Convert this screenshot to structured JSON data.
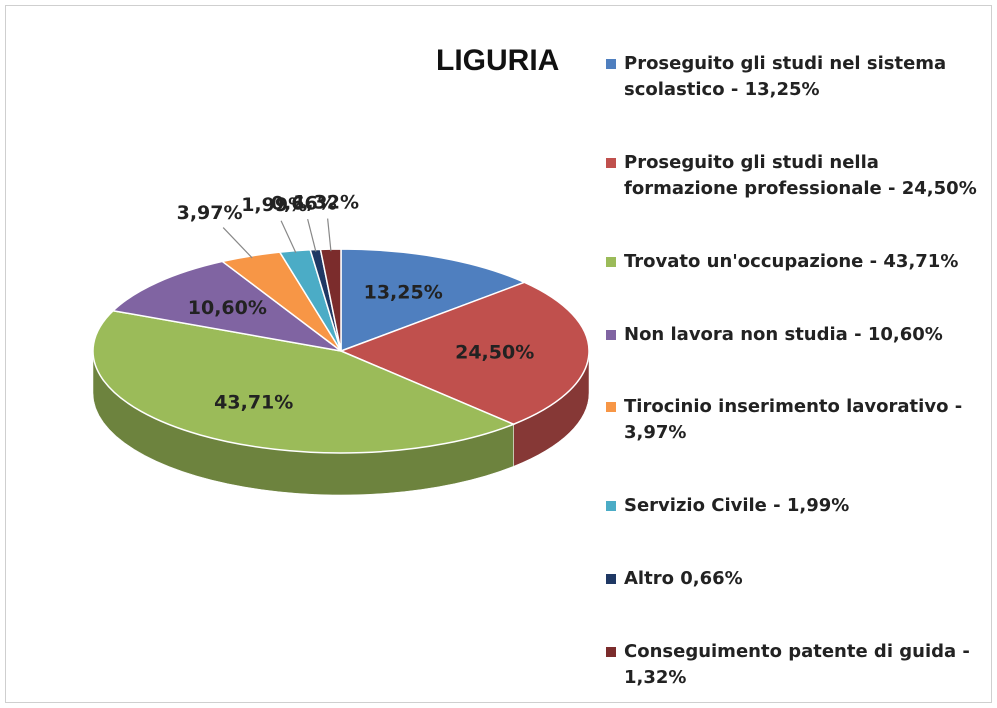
{
  "chart_data": {
    "type": "pie",
    "title": "LIGURIA",
    "categories": [
      "Proseguito gli studi nel sistema scolastico - 13,25%",
      "Proseguito gli studi nella formazione professionale - 24,50%",
      "Trovato un'occupazione - 43,71%",
      "Non lavora non studia - 10,60%",
      "Tirocinio inserimento lavorativo - 3,97%",
      "Servizio Civile - 1,99%",
      "Altro 0,66%",
      "Conseguimento patente di guida - 1,32%"
    ],
    "values": [
      13.25,
      24.5,
      43.71,
      10.6,
      3.97,
      1.99,
      0.66,
      1.32
    ],
    "value_labels": [
      "13,25%",
      "24,50%",
      "43,71%",
      "10,60%",
      "3,97%",
      "1,99%",
      "0,66%",
      "1,32%"
    ],
    "colors": [
      "#4f7fbf",
      "#c0504d",
      "#9bbb59",
      "#8064a2",
      "#f79646",
      "#4bacc6",
      "#1f3864",
      "#7b2c2c"
    ]
  }
}
